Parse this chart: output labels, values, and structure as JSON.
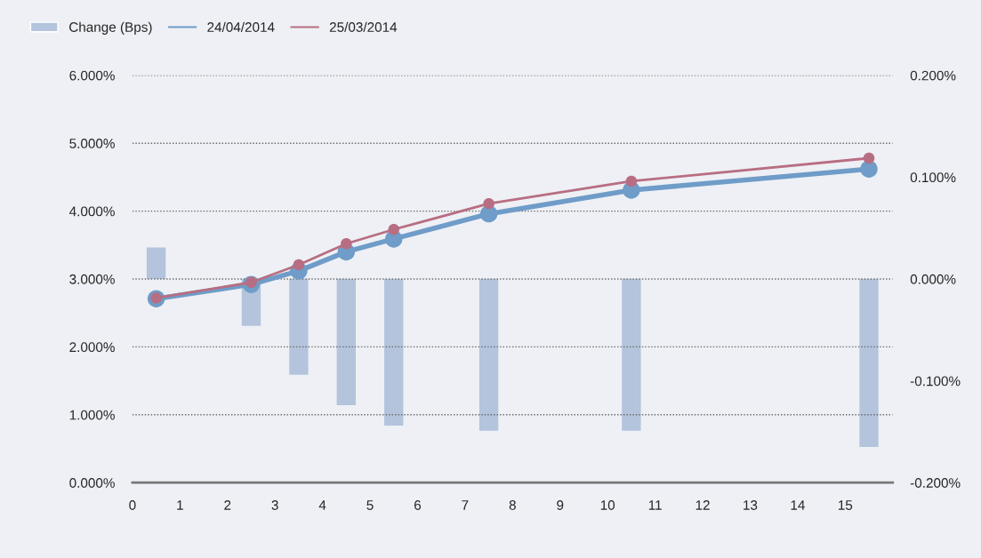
{
  "chart_data": {
    "type": "line",
    "x": [
      0.5,
      2.5,
      3.5,
      4.5,
      5.5,
      7.5,
      10.5,
      15.5
    ],
    "series": [
      {
        "name": "Change (Bps)",
        "type": "bar",
        "axis": "y2",
        "color": "#b3c4dc",
        "values": [
          0.031,
          -0.046,
          -0.094,
          -0.124,
          -0.144,
          -0.149,
          -0.149,
          -0.165
        ]
      },
      {
        "name": "24/04/2014",
        "axis": "y",
        "color": "#6f9cc8",
        "values": [
          2.71,
          2.92,
          3.12,
          3.4,
          3.59,
          3.96,
          4.31,
          4.62
        ]
      },
      {
        "name": "25/03/2014",
        "axis": "y",
        "color": "#b86e82",
        "values": [
          2.72,
          2.95,
          3.21,
          3.52,
          3.73,
          4.11,
          4.44,
          4.78
        ]
      }
    ],
    "xlim": [
      0,
      16
    ],
    "xticks": [
      0,
      1,
      2,
      3,
      4,
      5,
      6,
      7,
      8,
      9,
      10,
      11,
      12,
      13,
      14,
      15
    ],
    "ylim": [
      0,
      6
    ],
    "yticks": [
      {
        "value": 0,
        "label": "0.000%"
      },
      {
        "value": 1,
        "label": "1.000%"
      },
      {
        "value": 2,
        "label": "2.000%"
      },
      {
        "value": 3,
        "label": "3.000%"
      },
      {
        "value": 4,
        "label": "4.000%"
      },
      {
        "value": 5,
        "label": "5.000%"
      },
      {
        "value": 6,
        "label": "6.000%"
      }
    ],
    "y2lim": [
      -0.2,
      0.2
    ],
    "y2ticks": [
      {
        "value": -0.2,
        "label": "-0.200%"
      },
      {
        "value": -0.1,
        "label": "-0.100%"
      },
      {
        "value": 0,
        "label": "0.000%"
      },
      {
        "value": 0.1,
        "label": "0.100%"
      },
      {
        "value": 0.2,
        "label": "0.200%"
      }
    ],
    "grid": true,
    "legend": "top left",
    "marker": "circle",
    "line_style": "solid"
  }
}
